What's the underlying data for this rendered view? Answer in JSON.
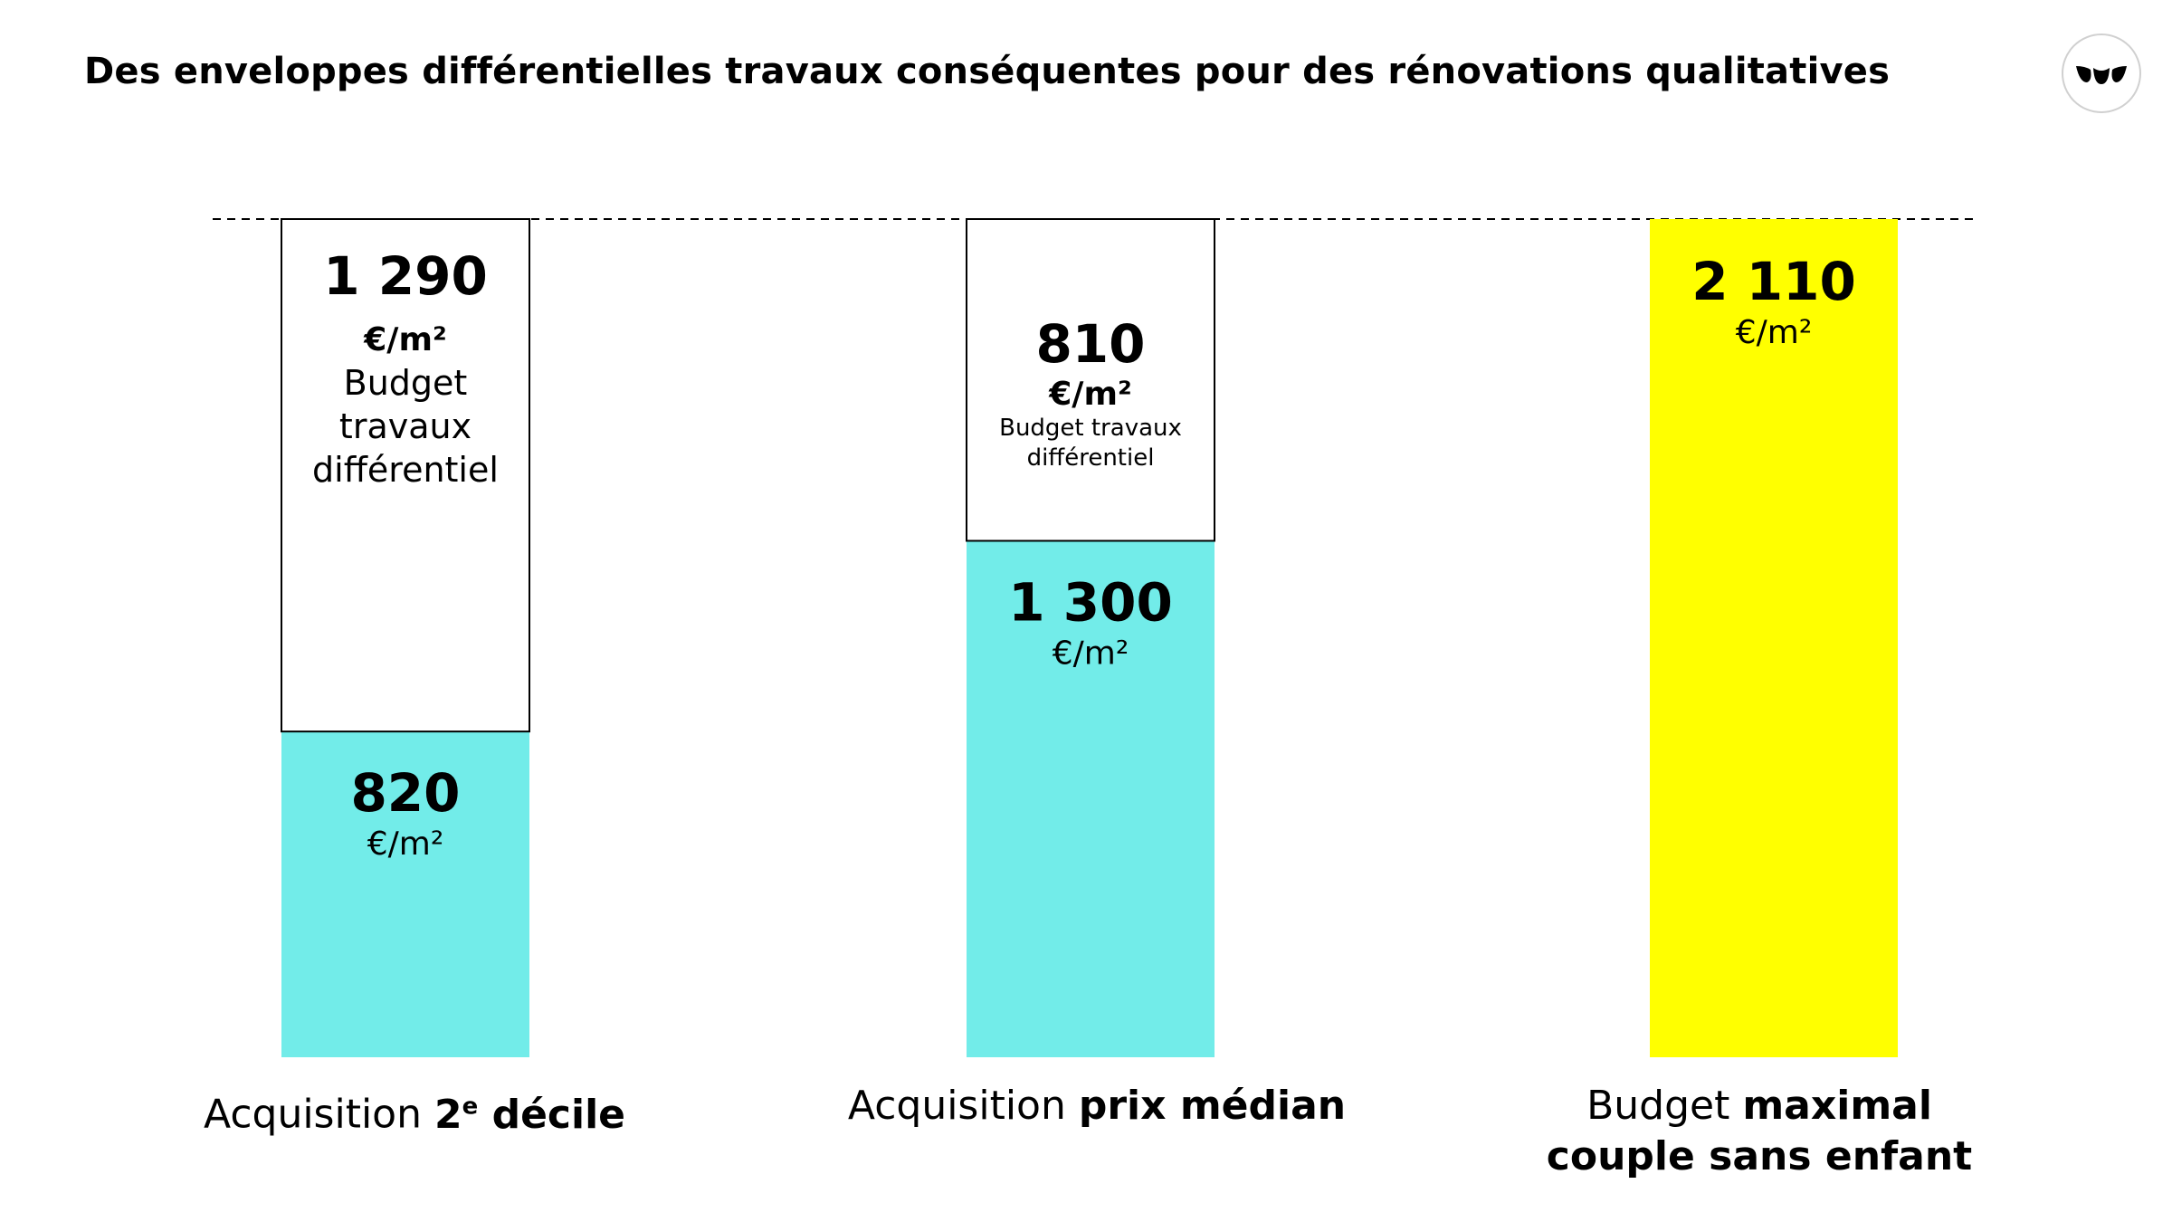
{
  "header": {
    "title": "Des enveloppes différentielles travaux conséquentes pour des rénovations qualitatives"
  },
  "logo": {
    "icon": "tulip-logo-icon"
  },
  "colors": {
    "acquisition": "#72ECE9",
    "budget_max": "#FFFF00",
    "differentiel": "#FFFFFF",
    "outline": "#000000"
  },
  "categories": [
    {
      "prefix": "Acquisition ",
      "emphasis_sup": "2",
      "sup": "e",
      "emphasis": " décile",
      "line2": ""
    },
    {
      "prefix": "Acquisition ",
      "emphasis_sup": "",
      "sup": "",
      "emphasis": "prix médian",
      "line2": ""
    },
    {
      "prefix": "Budget ",
      "emphasis_sup": "",
      "sup": "",
      "emphasis": "maximal",
      "line2": "couple sans enfant"
    }
  ],
  "chart_data": {
    "type": "bar",
    "stacked": true,
    "unit": "€/m²",
    "categories": [
      "Acquisition 2e décile",
      "Acquisition prix médian",
      "Budget maximal couple sans enfant"
    ],
    "series": [
      {
        "values": [
          820,
          1300,
          2110
        ]
      },
      {
        "values": [
          1290,
          810,
          0
        ]
      }
    ],
    "value_labels": {
      "acquisition": [
        "820",
        "1 300",
        "2 110"
      ],
      "differentiel": [
        "1 290",
        "810",
        ""
      ],
      "unit_text": "€/m²",
      "budget_text_a": [
        "Budget",
        "travaux",
        "différentiel"
      ],
      "budget_text_b": [
        "Budget travaux",
        "différentiel"
      ]
    },
    "reference_line": {
      "value": 2110,
      "style": "dashed"
    },
    "ylim": [
      0,
      2110
    ],
    "grid": false,
    "legend": "none"
  }
}
